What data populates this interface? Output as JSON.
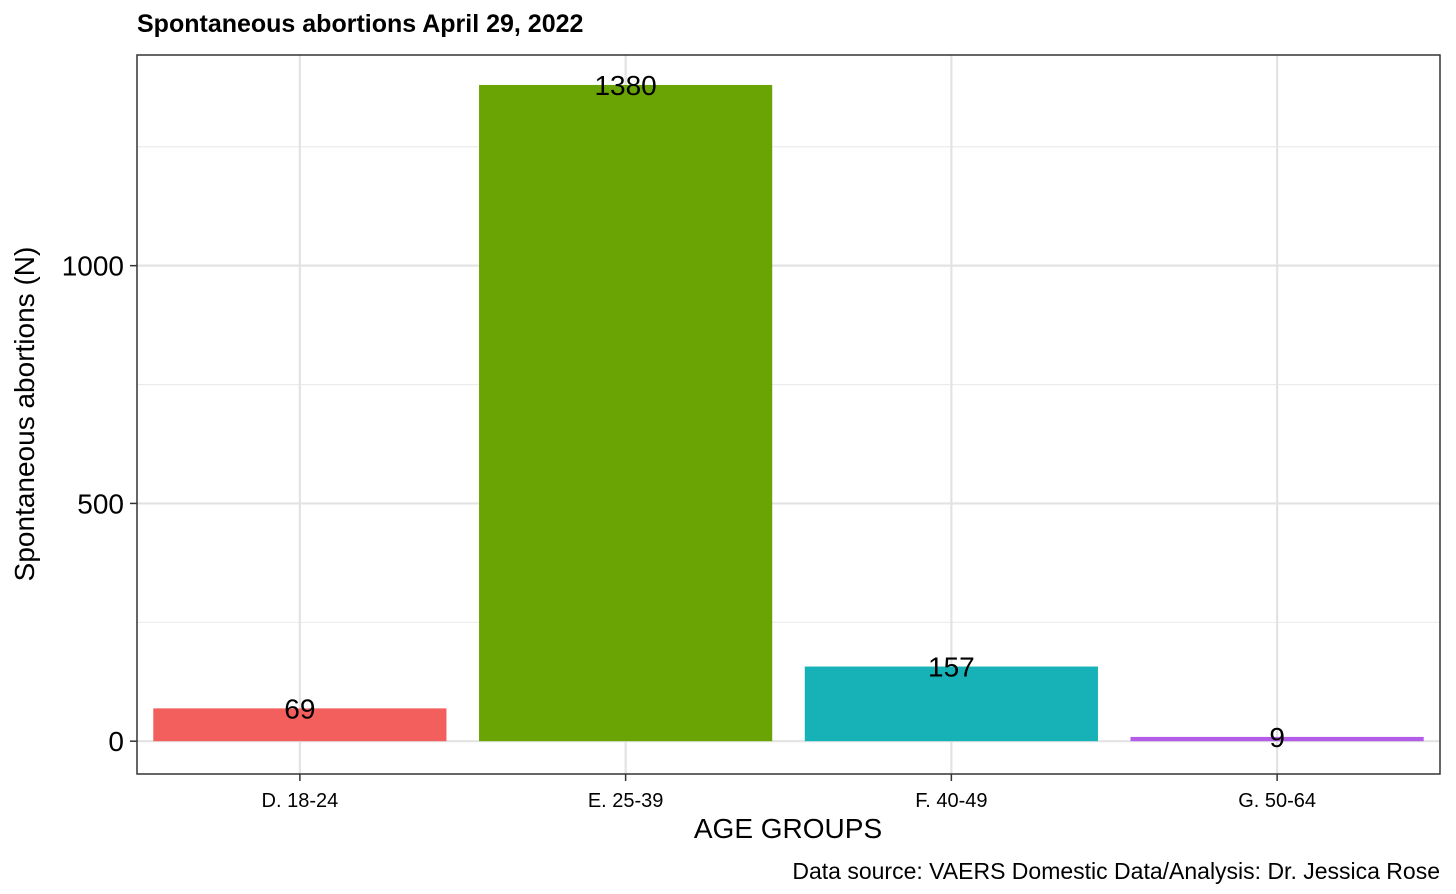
{
  "chart_data": {
    "type": "bar",
    "title": "Spontaneous abortions April 29, 2022",
    "xlabel": "AGE GROUPS",
    "ylabel": "Spontaneous abortions (N)",
    "caption": "Data source: VAERS Domestic Data/Analysis: Dr. Jessica Rose",
    "categories": [
      "D. 18-24",
      "E. 25-39",
      "F. 40-49",
      "G. 50-64"
    ],
    "values": [
      69,
      1380,
      157,
      9
    ],
    "data_labels": [
      "69",
      "1380",
      "157",
      "9"
    ],
    "colors": [
      "#F25F5C",
      "#6AA304",
      "#17B2B8",
      "#B25CE8"
    ],
    "ylim": [
      -69,
      1443
    ],
    "yticks": [
      0,
      500,
      1000
    ],
    "ytick_labels": [
      "0",
      "500",
      "1000"
    ],
    "grid": true,
    "legend": "none"
  }
}
